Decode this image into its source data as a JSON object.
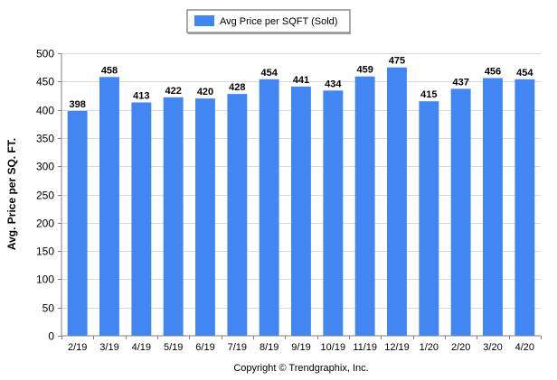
{
  "chart_data": {
    "type": "bar",
    "categories": [
      "2/19",
      "3/19",
      "4/19",
      "5/19",
      "6/19",
      "7/19",
      "8/19",
      "9/19",
      "10/19",
      "11/19",
      "12/19",
      "1/20",
      "2/20",
      "3/20",
      "4/20"
    ],
    "series": [
      {
        "name": "Avg Price per SQFT (Sold)",
        "values": [
          398,
          458,
          413,
          422,
          420,
          428,
          454,
          441,
          434,
          459,
          475,
          415,
          437,
          456,
          454
        ],
        "color": "#4286f4"
      }
    ],
    "ylabel": "Avg. Price per SQ. FT.",
    "xlabel": "",
    "ylim": [
      0,
      500
    ],
    "yticks": [
      0,
      50,
      100,
      150,
      200,
      250,
      300,
      350,
      400,
      450,
      500
    ],
    "grid": true,
    "legend_position": "top-center",
    "data_labels": true
  },
  "footer": {
    "copyright": "Copyright © Trendgraphix, Inc."
  },
  "colors": {
    "bar": "#4286f4",
    "grid": "#d9d9d9",
    "axis": "#7f7f7f"
  }
}
